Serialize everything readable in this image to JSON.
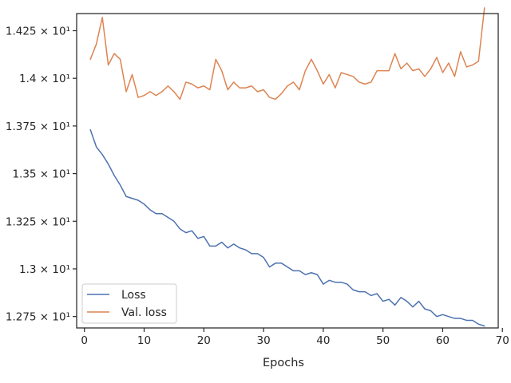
{
  "chart_data": {
    "type": "line",
    "title": "",
    "xlabel": "Epochs",
    "ylabel": "",
    "xlim": [
      -1.3,
      69.3
    ],
    "ylim": [
      12.69,
      14.34
    ],
    "xticks": [
      0,
      10,
      20,
      30,
      40,
      50,
      60,
      70
    ],
    "yticks": [
      {
        "value": 12.75,
        "label": "1.275 × 10¹"
      },
      {
        "value": 13.0,
        "label": "1.3 × 10¹"
      },
      {
        "value": 13.25,
        "label": "1.325 × 10¹"
      },
      {
        "value": 13.5,
        "label": "1.35 × 10¹"
      },
      {
        "value": 13.75,
        "label": "1.375 × 10¹"
      },
      {
        "value": 14.0,
        "label": "1.4 × 10¹"
      },
      {
        "value": 14.25,
        "label": "1.425 × 10¹"
      }
    ],
    "grid": false,
    "legend_position": "lower-left",
    "series": [
      {
        "name": "Loss",
        "color": "#4c72b0",
        "values": [
          13.73,
          13.64,
          13.6,
          13.55,
          13.49,
          13.44,
          13.38,
          13.37,
          13.36,
          13.34,
          13.31,
          13.29,
          13.29,
          13.27,
          13.25,
          13.21,
          13.19,
          13.2,
          13.16,
          13.17,
          13.12,
          13.12,
          13.14,
          13.11,
          13.13,
          13.11,
          13.1,
          13.08,
          13.08,
          13.06,
          13.01,
          13.03,
          13.03,
          13.01,
          12.99,
          12.99,
          12.97,
          12.98,
          12.97,
          12.92,
          12.94,
          12.93,
          12.93,
          12.92,
          12.89,
          12.88,
          12.88,
          12.86,
          12.87,
          12.83,
          12.84,
          12.81,
          12.85,
          12.83,
          12.8,
          12.83,
          12.79,
          12.78,
          12.75,
          12.76,
          12.75,
          12.74,
          12.74,
          12.73,
          12.73,
          12.71,
          12.7
        ]
      },
      {
        "name": "Val. loss",
        "color": "#dd8452",
        "values": [
          14.1,
          14.18,
          14.32,
          14.07,
          14.13,
          14.1,
          13.93,
          14.02,
          13.9,
          13.91,
          13.93,
          13.91,
          13.93,
          13.96,
          13.93,
          13.89,
          13.98,
          13.97,
          13.95,
          13.96,
          13.94,
          14.1,
          14.04,
          13.94,
          13.98,
          13.95,
          13.95,
          13.96,
          13.93,
          13.94,
          13.9,
          13.89,
          13.92,
          13.96,
          13.98,
          13.94,
          14.04,
          14.1,
          14.04,
          13.97,
          14.02,
          13.95,
          14.03,
          14.02,
          14.01,
          13.98,
          13.97,
          13.98,
          14.04,
          14.04,
          14.04,
          14.13,
          14.05,
          14.08,
          14.04,
          14.05,
          14.01,
          14.05,
          14.11,
          14.03,
          14.08,
          14.01,
          14.14,
          14.06,
          14.07,
          14.09,
          14.37
        ]
      }
    ]
  }
}
